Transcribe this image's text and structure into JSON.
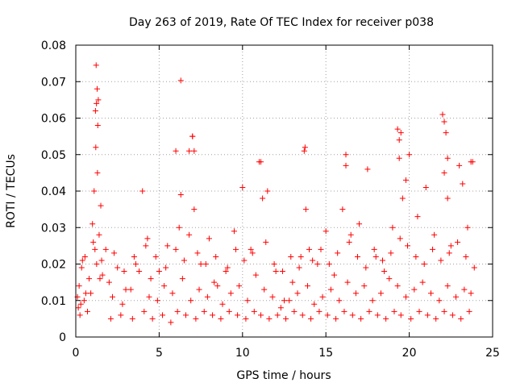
{
  "chart_data": {
    "type": "scatter",
    "title": "Day 263 of 2019, Rate Of TEC Index for receiver p038",
    "xlabel": "GPS time / hours",
    "ylabel": "ROTI / TECUs",
    "xlim": [
      0,
      25
    ],
    "ylim": [
      0,
      0.08
    ],
    "xticks": [
      0,
      5,
      10,
      15,
      20,
      25
    ],
    "xtick_labels": [
      "0",
      "5",
      "10",
      "15",
      "20",
      "25"
    ],
    "yticks": [
      0,
      0.01,
      0.02,
      0.03,
      0.04,
      0.05,
      0.06,
      0.07,
      0.08
    ],
    "ytick_labels": [
      "0",
      "0.01",
      "0.02",
      "0.03",
      "0.04",
      "0.05",
      "0.06",
      "0.07",
      "0.08"
    ],
    "grid": true,
    "marker": "+",
    "color": "#ff0000",
    "series": [
      {
        "x": [
          0.1,
          0.2,
          0.3,
          0.4,
          0.6,
          0.8,
          1.0,
          1.1,
          1.2,
          1.3,
          1.4,
          1.5,
          1.8,
          2.0,
          2.5,
          3.0,
          3.5,
          4.0,
          4.3,
          4.5,
          5.0,
          5.5,
          6.0,
          6.2,
          6.3,
          6.8,
          7.0,
          7.1,
          7.5,
          8.0,
          8.5,
          9.0,
          9.5,
          10.0,
          10.5,
          11.0,
          11.2,
          11.5,
          12.0,
          12.5,
          13.0,
          13.5,
          13.7,
          13.8,
          14.0,
          14.5,
          15.0,
          15.5,
          16.0,
          16.2,
          16.5,
          17.0,
          17.5,
          18.0,
          18.5,
          19.0,
          19.3,
          19.4,
          19.6,
          19.8,
          20.0,
          20.5,
          21.0,
          21.5,
          22.0,
          22.1,
          22.3,
          22.5,
          23.0,
          23.2,
          23.5,
          23.8,
          0.15,
          0.5,
          0.9,
          1.25,
          1.6,
          2.2,
          2.8,
          3.3,
          3.8,
          4.4,
          4.9,
          5.3,
          5.8,
          6.4,
          6.9,
          7.4,
          7.9,
          8.3,
          8.8,
          9.3,
          9.8,
          10.3,
          10.8,
          11.3,
          11.8,
          12.3,
          12.8,
          13.3,
          13.9,
          14.3,
          14.8,
          15.3,
          15.8,
          16.3,
          16.8,
          17.3,
          17.8,
          18.3,
          18.8,
          19.3,
          19.8,
          20.3,
          20.8,
          21.3,
          21.8,
          22.3,
          22.8,
          23.3,
          23.7,
          0.25,
          0.7,
          1.15,
          1.35,
          1.45,
          2.1,
          2.7,
          3.4,
          4.1,
          4.6,
          5.2,
          5.7,
          6.1,
          6.6,
          7.2,
          7.7,
          8.2,
          8.7,
          9.2,
          9.7,
          10.2,
          10.7,
          11.1,
          11.6,
          12.1,
          12.6,
          13.1,
          13.6,
          14.1,
          14.6,
          15.1,
          15.6,
          16.1,
          16.6,
          17.1,
          17.6,
          18.1,
          18.6,
          19.1,
          19.5,
          20.1,
          20.6,
          21.1,
          21.6,
          22.1,
          22.6,
          23.1,
          23.6,
          0.35,
          0.55,
          1.05,
          1.55,
          2.3,
          2.9,
          3.6,
          4.2,
          4.8,
          5.4,
          6.0,
          6.5,
          7.3,
          7.8,
          8.4,
          9.1,
          9.6,
          10.1,
          10.6,
          11.4,
          11.9,
          12.4,
          12.9,
          13.4,
          14.2,
          14.7,
          15.2,
          15.7,
          16.4,
          16.9,
          17.4,
          17.9,
          18.4,
          18.9,
          19.45,
          19.9,
          20.4,
          20.9,
          21.4,
          21.9,
          22.4,
          22.9,
          23.4,
          23.9,
          1.22,
          1.28,
          1.18,
          1.32,
          6.3,
          1.24,
          22.1,
          22.2,
          19.4,
          19.5,
          13.75,
          11.1,
          16.2,
          6.8,
          7.0,
          7.1,
          22.3,
          23.7
        ],
        "y": [
          0.011,
          0.014,
          0.009,
          0.021,
          0.012,
          0.016,
          0.031,
          0.04,
          0.052,
          0.045,
          0.028,
          0.036,
          0.024,
          0.015,
          0.019,
          0.013,
          0.022,
          0.04,
          0.027,
          0.016,
          0.018,
          0.025,
          0.051,
          0.03,
          0.039,
          0.028,
          0.055,
          0.035,
          0.02,
          0.027,
          0.014,
          0.018,
          0.029,
          0.041,
          0.024,
          0.048,
          0.038,
          0.04,
          0.018,
          0.01,
          0.015,
          0.022,
          0.051,
          0.035,
          0.024,
          0.02,
          0.029,
          0.017,
          0.035,
          0.05,
          0.028,
          0.031,
          0.046,
          0.022,
          0.018,
          0.03,
          0.057,
          0.049,
          0.038,
          0.043,
          0.05,
          0.033,
          0.041,
          0.028,
          0.061,
          0.045,
          0.038,
          0.025,
          0.047,
          0.042,
          0.03,
          0.048,
          0.008,
          0.01,
          0.012,
          0.02,
          0.017,
          0.011,
          0.009,
          0.013,
          0.018,
          0.011,
          0.01,
          0.014,
          0.012,
          0.016,
          0.01,
          0.013,
          0.011,
          0.015,
          0.009,
          0.012,
          0.014,
          0.01,
          0.017,
          0.013,
          0.011,
          0.008,
          0.01,
          0.012,
          0.014,
          0.009,
          0.011,
          0.013,
          0.01,
          0.015,
          0.012,
          0.014,
          0.01,
          0.012,
          0.016,
          0.014,
          0.011,
          0.013,
          0.015,
          0.012,
          0.01,
          0.014,
          0.011,
          0.013,
          0.012,
          0.006,
          0.007,
          0.024,
          0.065,
          0.016,
          0.005,
          0.006,
          0.005,
          0.007,
          0.005,
          0.006,
          0.004,
          0.007,
          0.006,
          0.005,
          0.007,
          0.006,
          0.005,
          0.007,
          0.006,
          0.005,
          0.007,
          0.006,
          0.005,
          0.006,
          0.005,
          0.007,
          0.006,
          0.005,
          0.007,
          0.006,
          0.005,
          0.007,
          0.006,
          0.005,
          0.007,
          0.006,
          0.005,
          0.007,
          0.006,
          0.005,
          0.007,
          0.006,
          0.005,
          0.007,
          0.006,
          0.005,
          0.007,
          0.019,
          0.022,
          0.026,
          0.021,
          0.023,
          0.018,
          0.02,
          0.025,
          0.022,
          0.019,
          0.024,
          0.021,
          0.023,
          0.02,
          0.022,
          0.019,
          0.024,
          0.021,
          0.023,
          0.026,
          0.02,
          0.018,
          0.022,
          0.019,
          0.021,
          0.024,
          0.02,
          0.023,
          0.026,
          0.022,
          0.019,
          0.024,
          0.021,
          0.023,
          0.027,
          0.025,
          0.022,
          0.02,
          0.024,
          0.021,
          0.023,
          0.026,
          0.022,
          0.019,
          0.0745,
          0.068,
          0.062,
          0.058,
          0.0703,
          0.064,
          0.059,
          0.056,
          0.054,
          0.056,
          0.052,
          0.048,
          0.047,
          0.051,
          0.055,
          0.051,
          0.049,
          0.048
        ]
      }
    ]
  }
}
